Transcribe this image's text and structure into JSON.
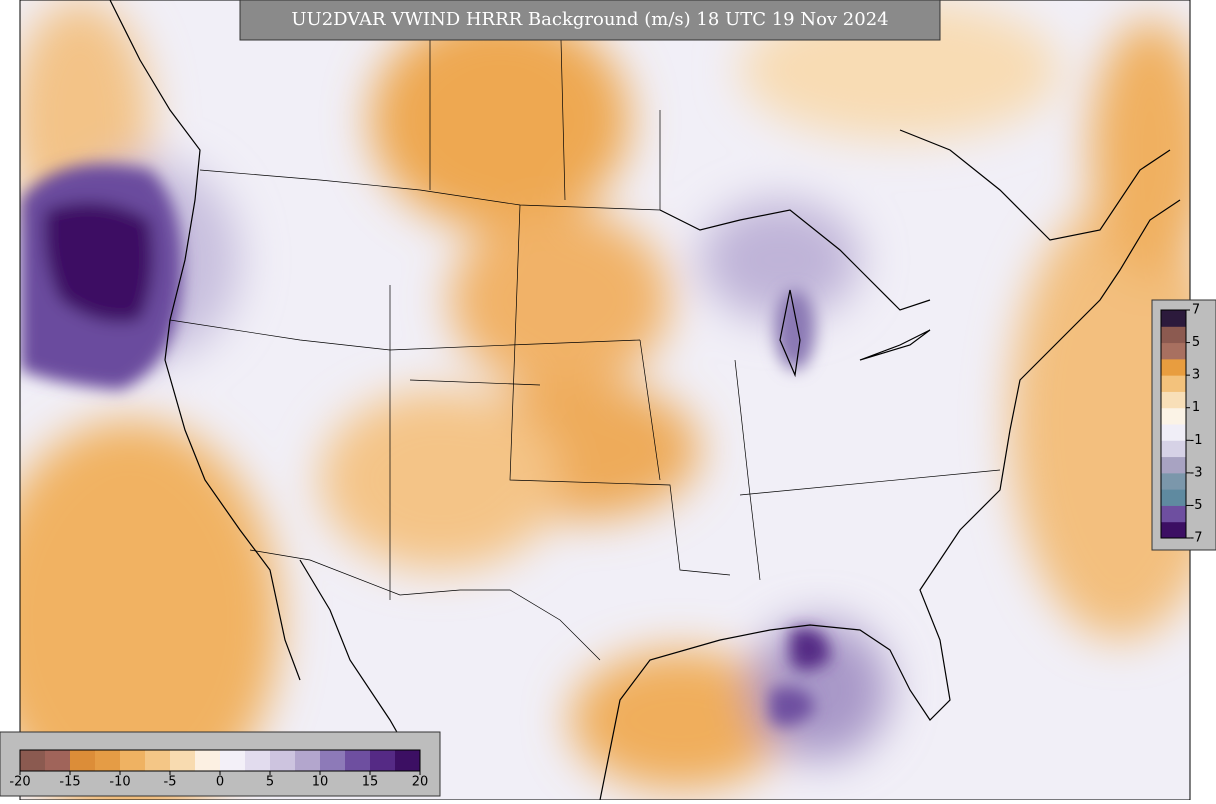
{
  "title": "UU2DVAR VWIND HRRR Background (m/s) 18 UTC 19 Nov 2024",
  "colorbars": [
    {
      "orientation": "horizontal",
      "lim": [
        -20,
        20
      ],
      "ticks": [
        -20,
        -15,
        -10,
        -5,
        0,
        5,
        10,
        15,
        20
      ],
      "colors": [
        "#8b5a50",
        "#a0645a",
        "#dc8d38",
        "#e59c45",
        "#efb262",
        "#f4c686",
        "#f8dbb0",
        "#fcf0e2",
        "#f3f0f8",
        "#e2dcee",
        "#cdc4df",
        "#b3a6cd",
        "#8d7ab8",
        "#6e4fa0",
        "#552a85",
        "#3c0f63"
      ]
    },
    {
      "orientation": "vertical",
      "lim": [
        -7,
        7
      ],
      "ticks": [
        7,
        5,
        3,
        1,
        -1,
        -3,
        -5,
        -7
      ],
      "colors": [
        "#3c0f63",
        "#6e4fa0",
        "#5f8aa0",
        "#7b97ab",
        "#a8a3c2",
        "#d6d2e6",
        "#f0eef7",
        "#fbf3e6",
        "#f8dfb8",
        "#f3c27c",
        "#e89d3f",
        "#a87060",
        "#8c5a50",
        "#2c1a3c"
      ]
    }
  ]
}
